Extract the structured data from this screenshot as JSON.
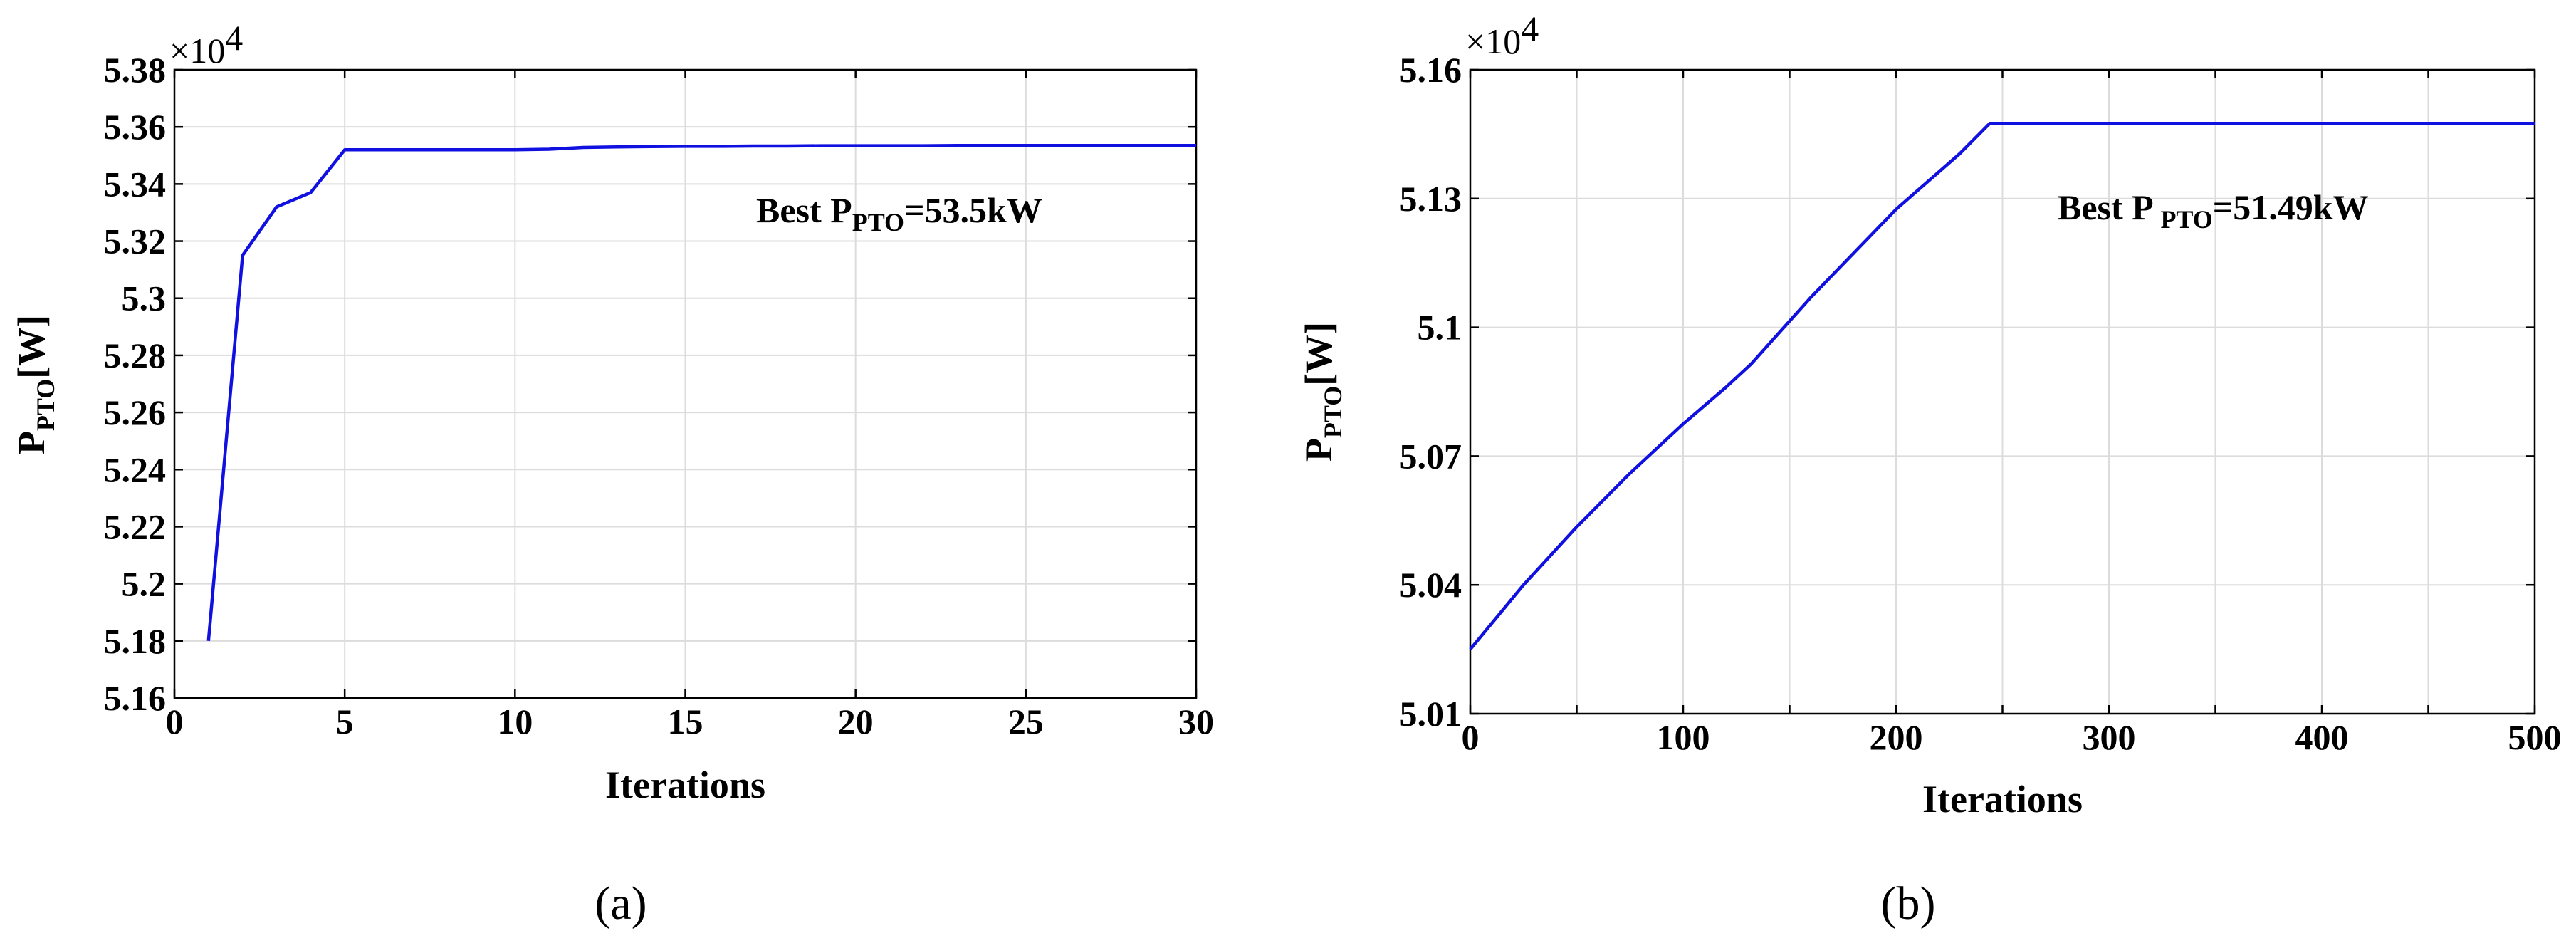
{
  "chart_data": [
    {
      "type": "line",
      "caption": "(a)",
      "multiplier": "×10",
      "multiplier_exp": "4",
      "xlabel": "Iterations",
      "ylabel_main": "P",
      "ylabel_sub": "PTO",
      "ylabel_unit": "[W]",
      "xlim": [
        0,
        30
      ],
      "ylim": [
        5.16,
        5.38
      ],
      "xticks": [
        0,
        5,
        10,
        15,
        20,
        25,
        30
      ],
      "yticks": [
        5.16,
        5.18,
        5.2,
        5.22,
        5.24,
        5.26,
        5.28,
        5.3,
        5.32,
        5.34,
        5.36,
        5.38
      ],
      "ytick_labels": [
        "5.16",
        "5.18",
        "5.2",
        "5.22",
        "5.24",
        "5.26",
        "5.28",
        "5.3",
        "5.32",
        "5.34",
        "5.36",
        "5.38"
      ],
      "grid": true,
      "line_color": "#1010e0",
      "annotation_prefix": "Best P",
      "annotation_sub": "PTO",
      "annotation_value": "=53.5kW",
      "series": [
        {
          "x": [
            1,
            2,
            3,
            4,
            5,
            6,
            7,
            8,
            9,
            10,
            11,
            12,
            13,
            14,
            15,
            16,
            17,
            18,
            19,
            20,
            21,
            22,
            23,
            24,
            25,
            26,
            27,
            28,
            29,
            30
          ],
          "y": [
            5.18,
            5.315,
            5.332,
            5.337,
            5.352,
            5.352,
            5.352,
            5.352,
            5.352,
            5.352,
            5.3522,
            5.3528,
            5.353,
            5.3531,
            5.3532,
            5.3532,
            5.3533,
            5.3533,
            5.3534,
            5.3534,
            5.3534,
            5.3534,
            5.3535,
            5.3535,
            5.3535,
            5.3535,
            5.3535,
            5.3535,
            5.3535,
            5.3535
          ]
        }
      ]
    },
    {
      "type": "line",
      "caption": "(b)",
      "multiplier": "×10",
      "multiplier_exp": "4",
      "xlabel": "Iterations",
      "ylabel_main": "P",
      "ylabel_sub": "PTO",
      "ylabel_unit": "[W]",
      "xlim": [
        0,
        500
      ],
      "ylim": [
        5.01,
        5.16
      ],
      "xticks": [
        0,
        100,
        200,
        300,
        400,
        500
      ],
      "minor_xticks": [
        50,
        150,
        250,
        350,
        450
      ],
      "yticks": [
        5.01,
        5.04,
        5.07,
        5.1,
        5.13,
        5.16
      ],
      "ytick_labels": [
        "5.01",
        "5.04",
        "5.07",
        "5.1",
        "5.13",
        "5.16"
      ],
      "grid": true,
      "line_color": "#1010e0",
      "annotation_prefix": "Best P ",
      "annotation_sub": "PTO",
      "annotation_value": "=51.49kW",
      "series": [
        {
          "x": [
            0,
            25,
            50,
            75,
            100,
            120,
            132,
            160,
            200,
            230,
            244,
            300,
            350,
            400,
            450,
            500
          ],
          "y": [
            5.025,
            5.04,
            5.0535,
            5.066,
            5.0775,
            5.086,
            5.0915,
            5.107,
            5.1275,
            5.1405,
            5.1475,
            5.1475,
            5.1475,
            5.1475,
            5.1475,
            5.1475
          ]
        }
      ]
    }
  ]
}
